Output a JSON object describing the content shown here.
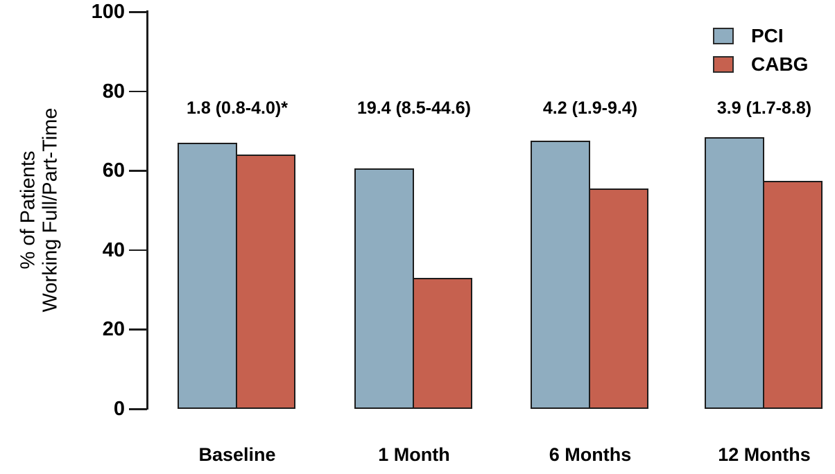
{
  "figure": {
    "background": "#ffffff"
  },
  "chart_data": {
    "type": "bar",
    "title": "",
    "ylabel_lines": [
      "% of Patients",
      "Working Full/Part-Time"
    ],
    "xlabel": "",
    "categories": [
      "Baseline",
      "1 Month",
      "6 Months",
      "12 Months"
    ],
    "series": [
      {
        "name": "PCI",
        "color": "#8FADC0",
        "values": [
          67,
          60.5,
          67.5,
          68.5
        ]
      },
      {
        "name": "CABG",
        "color": "#C6614F",
        "values": [
          64,
          33,
          55.5,
          57.5
        ]
      }
    ],
    "annotations": [
      "1.8 (0.8-4.0)*",
      "19.4 (8.5-44.6)",
      "4.2 (1.9-9.4)",
      "3.9 (1.7-8.8)"
    ],
    "yticks": [
      0,
      20,
      40,
      60,
      80,
      100
    ],
    "ylim": [
      0,
      100
    ],
    "grid": false,
    "legend_position": "top-right",
    "bar_border_color": "#1c1c1c",
    "text_color": "#000000"
  }
}
